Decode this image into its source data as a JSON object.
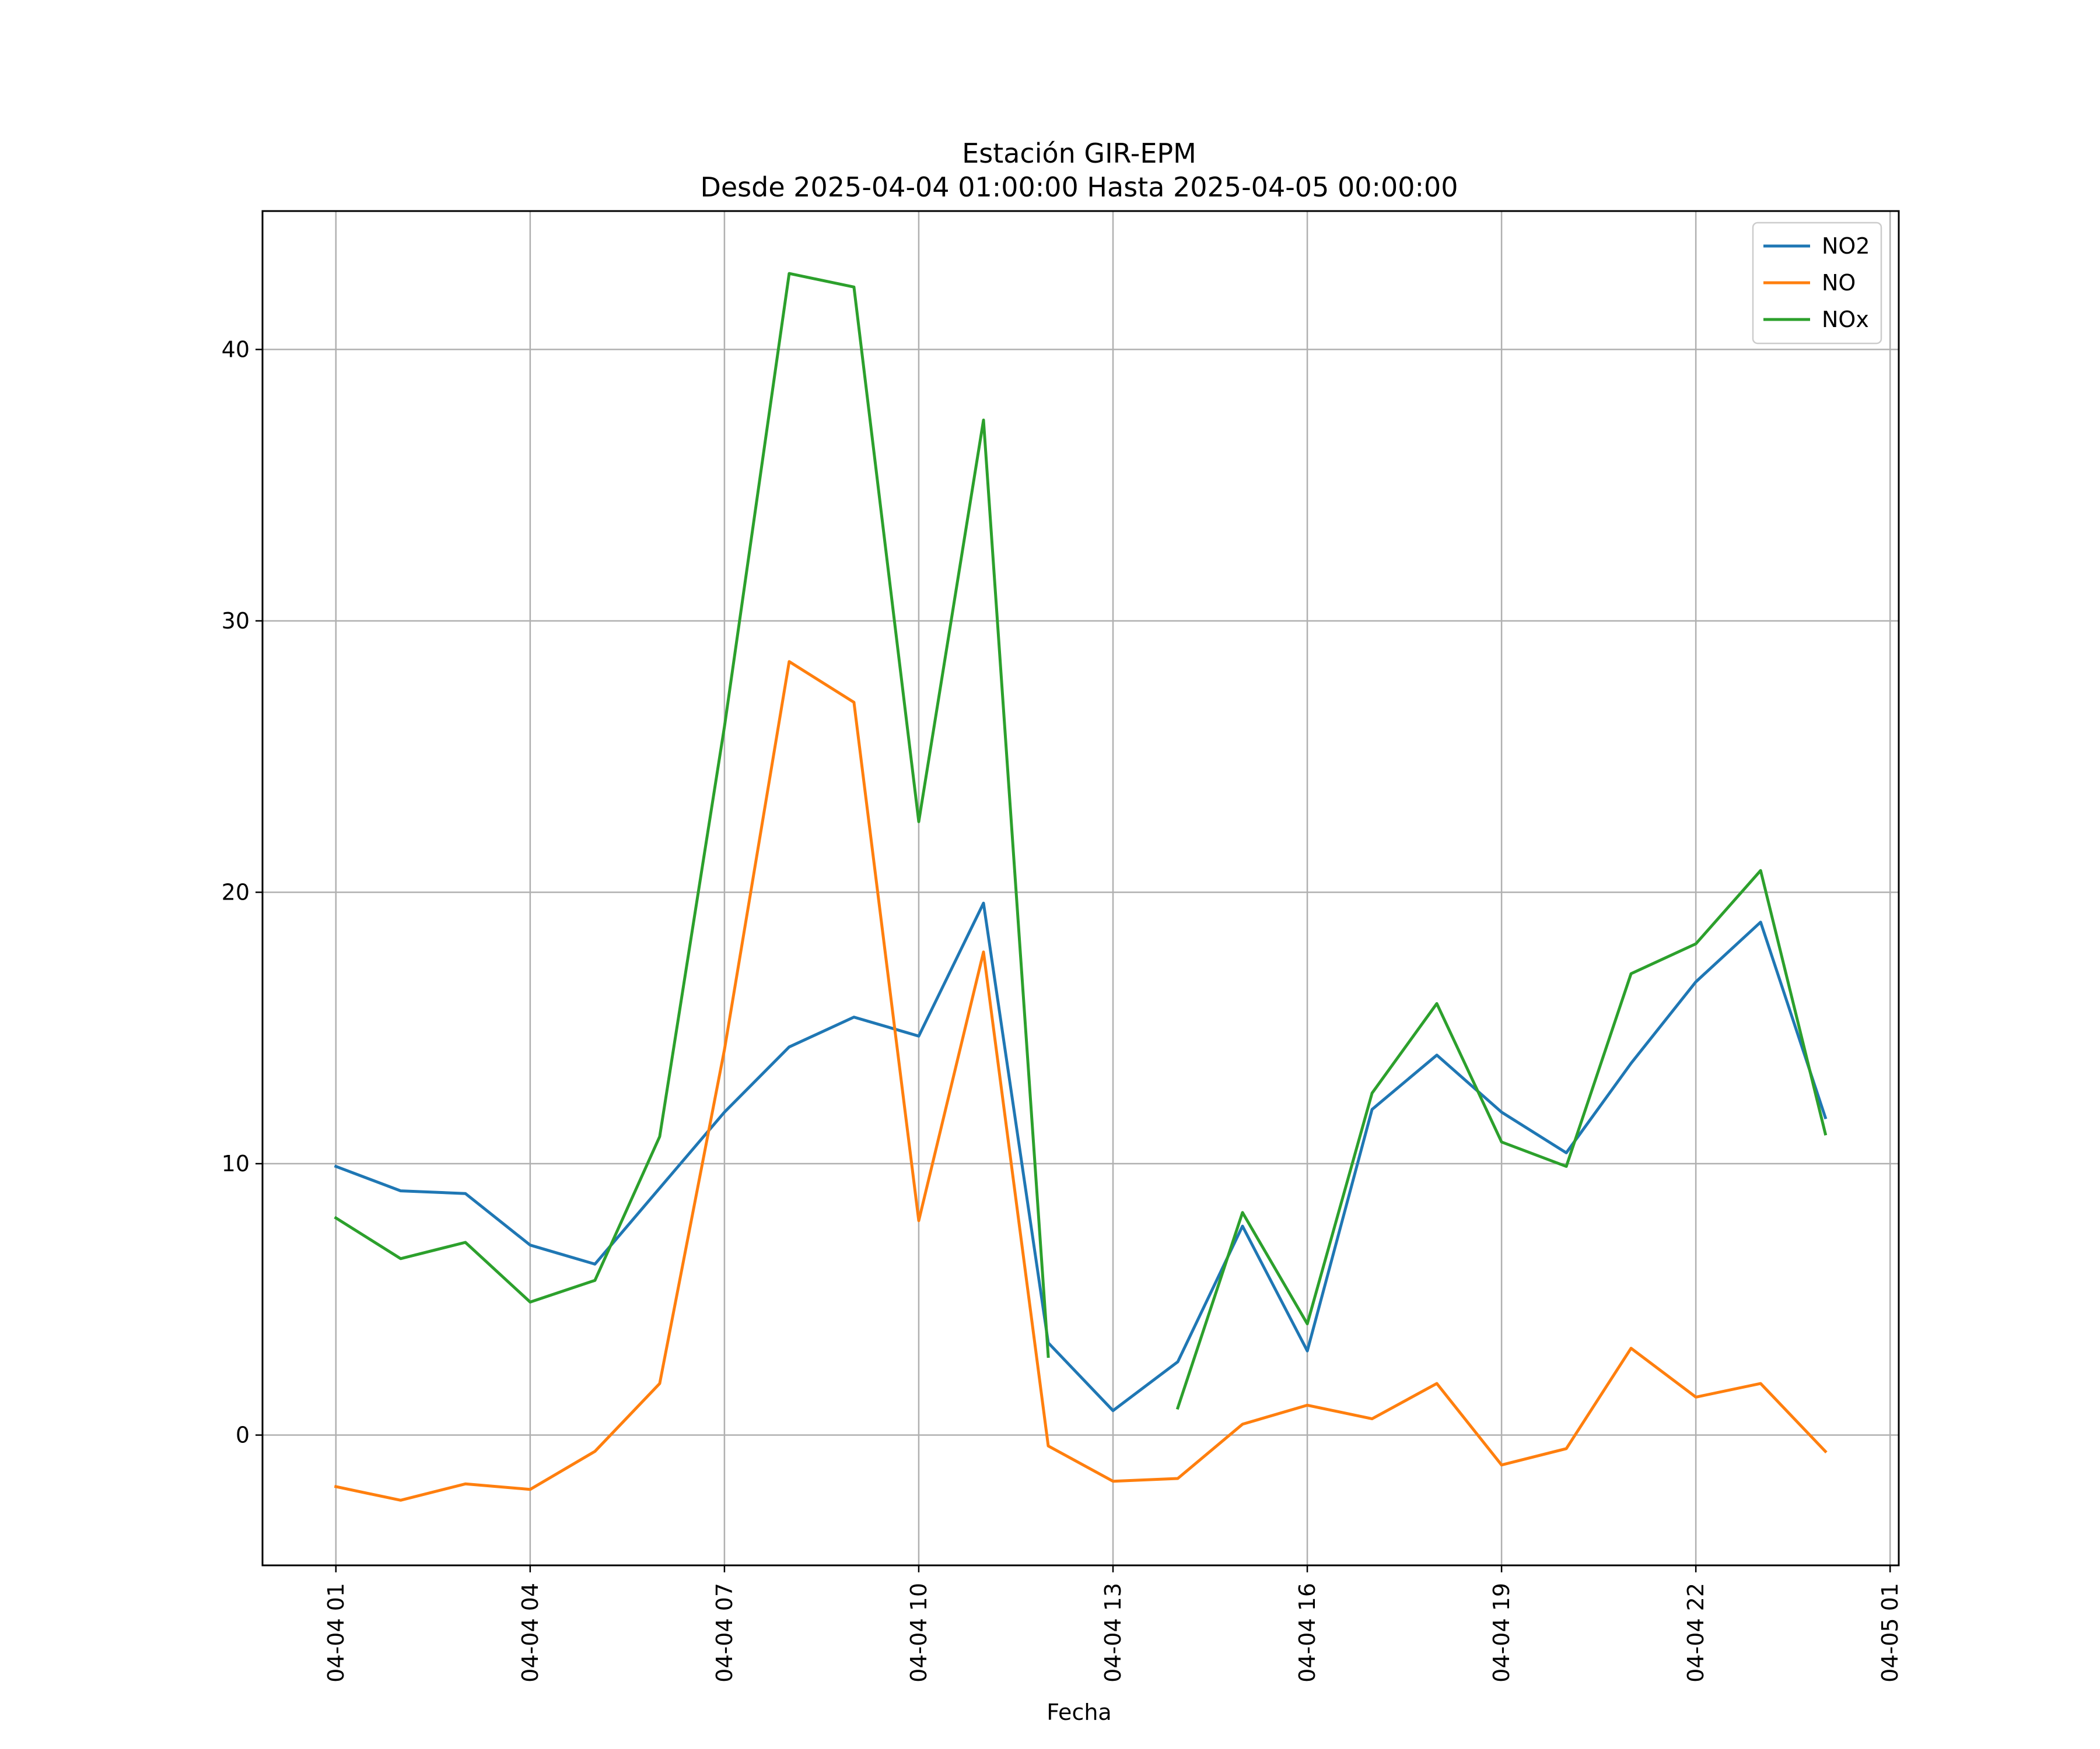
{
  "chart_data": {
    "type": "line",
    "title": "Estación GIR-EPM",
    "subtitle": "Desde 2025-04-04 01:00:00 Hasta 2025-04-05 00:00:00",
    "xlabel": "Fecha",
    "ylabel": "",
    "x": [
      "2025-04-04 01:00",
      "2025-04-04 02:00",
      "2025-04-04 03:00",
      "2025-04-04 04:00",
      "2025-04-04 05:00",
      "2025-04-04 06:00",
      "2025-04-04 07:00",
      "2025-04-04 08:00",
      "2025-04-04 09:00",
      "2025-04-04 10:00",
      "2025-04-04 11:00",
      "2025-04-04 12:00",
      "2025-04-04 13:00",
      "2025-04-04 14:00",
      "2025-04-04 15:00",
      "2025-04-04 16:00",
      "2025-04-04 17:00",
      "2025-04-04 18:00",
      "2025-04-04 19:00",
      "2025-04-04 20:00",
      "2025-04-04 21:00",
      "2025-04-04 22:00",
      "2025-04-04 23:00",
      "2025-04-05 00:00"
    ],
    "xlim": [
      "2025-04-03 23:52",
      "2025-04-05 01:08"
    ],
    "xticks": [
      "04-04 01",
      "04-04 04",
      "04-04 07",
      "04-04 10",
      "04-04 13",
      "04-04 16",
      "04-04 19",
      "04-04 22",
      "04-05 01"
    ],
    "ylim": [
      -4.8,
      45.1
    ],
    "yticks": [
      0,
      10,
      20,
      30,
      40
    ],
    "grid": true,
    "legend_position": "top-right",
    "series": [
      {
        "name": "NO2",
        "color": "#1f77b4",
        "values": [
          9.9,
          9.0,
          8.9,
          7.0,
          6.3,
          9.1,
          11.9,
          14.3,
          15.4,
          14.7,
          19.6,
          3.4,
          0.9,
          2.7,
          7.7,
          3.1,
          12.0,
          14.0,
          11.9,
          10.4,
          13.7,
          16.7,
          18.9,
          11.7
        ]
      },
      {
        "name": "NO",
        "color": "#ff7f0e",
        "values": [
          -1.9,
          -2.4,
          -1.8,
          -2.0,
          -0.6,
          1.9,
          14.2,
          28.5,
          27.0,
          7.9,
          17.8,
          -0.4,
          -1.7,
          -1.6,
          0.4,
          1.1,
          0.6,
          1.9,
          -1.1,
          -0.5,
          3.2,
          1.4,
          1.9,
          -0.6
        ]
      },
      {
        "name": "NOx",
        "color": "#2ca02c",
        "values": [
          8.0,
          6.5,
          7.1,
          4.9,
          5.7,
          11.0,
          26.1,
          42.8,
          42.3,
          22.6,
          37.4,
          2.9,
          null,
          1.0,
          8.2,
          4.1,
          12.6,
          15.9,
          10.8,
          9.9,
          17.0,
          18.1,
          20.8,
          11.1
        ]
      }
    ]
  }
}
